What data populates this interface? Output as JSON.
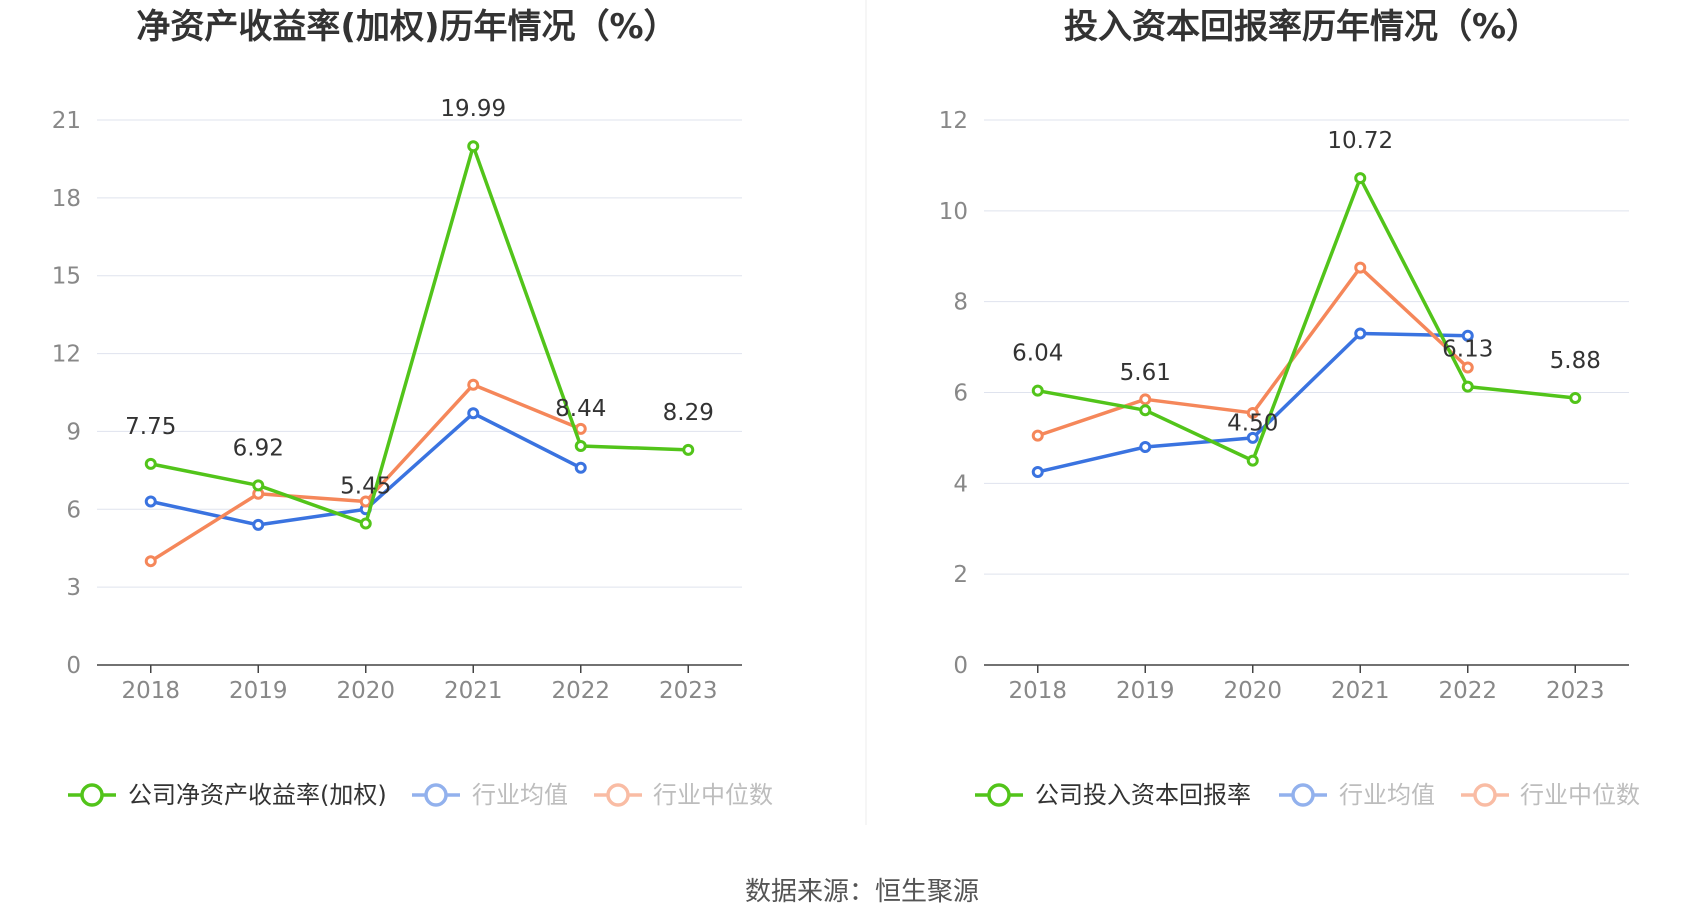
{
  "chart_data": [
    {
      "type": "line",
      "title": "净资产收益率(加权)历年情况（%）",
      "categories": [
        "2018",
        "2019",
        "2020",
        "2021",
        "2022",
        "2023"
      ],
      "y_ticks": [
        "0",
        "3",
        "6",
        "9",
        "12",
        "15",
        "18",
        "21"
      ],
      "ylim": [
        0,
        21
      ],
      "grid": true,
      "legend_position": "bottom",
      "series": [
        {
          "name": "公司净资产收益率(加权)",
          "color": "#52c41a",
          "values": [
            7.75,
            6.92,
            5.45,
            19.99,
            8.44,
            8.29
          ],
          "labels": [
            "7.75",
            "6.92",
            "5.45",
            "19.99",
            "8.44",
            "8.29"
          ]
        },
        {
          "name": "行业均值",
          "color": "#3a73e0",
          "values": [
            6.3,
            5.4,
            6.0,
            9.7,
            7.6,
            null
          ]
        },
        {
          "name": "行业中位数",
          "color": "#f5875a",
          "values": [
            4.0,
            6.6,
            6.3,
            10.8,
            9.1,
            null
          ]
        }
      ]
    },
    {
      "type": "line",
      "title": "投入资本回报率历年情况（%）",
      "categories": [
        "2018",
        "2019",
        "2020",
        "2021",
        "2022",
        "2023"
      ],
      "y_ticks": [
        "0",
        "2",
        "4",
        "6",
        "8",
        "10",
        "12"
      ],
      "ylim": [
        0,
        12
      ],
      "grid": true,
      "legend_position": "bottom",
      "series": [
        {
          "name": "公司投入资本回报率",
          "color": "#52c41a",
          "values": [
            6.04,
            5.61,
            4.5,
            10.72,
            6.13,
            5.88
          ],
          "labels": [
            "6.04",
            "5.61",
            "4.50",
            "10.72",
            "6.13",
            "5.88"
          ]
        },
        {
          "name": "行业均值",
          "color": "#3a73e0",
          "values": [
            4.25,
            4.8,
            5.0,
            7.3,
            7.25,
            null
          ]
        },
        {
          "name": "行业中位数",
          "color": "#f5875a",
          "values": [
            5.05,
            5.85,
            5.55,
            8.75,
            6.55,
            null
          ]
        }
      ]
    }
  ],
  "footer": {
    "source": "数据来源：恒生聚源"
  }
}
